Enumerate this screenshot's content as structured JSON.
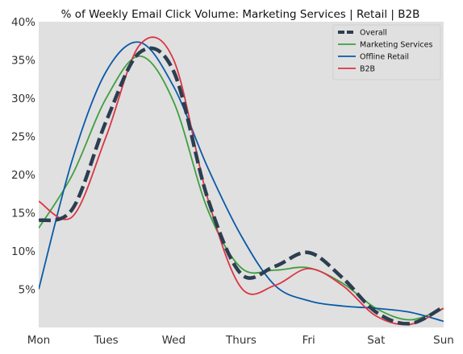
{
  "chart_data": {
    "type": "line",
    "title": "% of Weekly Email Click Volume: Marketing Services | Retail | B2B",
    "xlabel": "",
    "ylabel": "",
    "x_tick_labels": [
      "Mon",
      "Tues",
      "Wed",
      "Thurs",
      "Fri",
      "Sat",
      "Sun"
    ],
    "x": [
      0,
      0.5,
      1,
      1.5,
      2,
      2.5,
      3,
      3.5,
      4,
      4.5,
      5,
      5.5,
      6
    ],
    "y_tick_labels": [
      "5%",
      "10%",
      "15%",
      "20%",
      "25%",
      "30%",
      "35%",
      "40%"
    ],
    "ylim": [
      0,
      40
    ],
    "xlim": [
      0,
      6
    ],
    "grid": false,
    "legend_position": "top-right",
    "background_color": "#e0e0e0",
    "series": [
      {
        "name": "Overall",
        "color": "#2c3e50",
        "style": "dashed",
        "values": [
          14,
          15.5,
          27,
          36,
          33.5,
          17,
          7,
          8,
          9.8,
          6.5,
          2,
          0.5,
          2.7
        ]
      },
      {
        "name": "Marketing Services",
        "color": "#3f9f3f",
        "style": "solid",
        "values": [
          13,
          20,
          30,
          35.5,
          29.5,
          15.5,
          7.8,
          7.5,
          7.8,
          5.8,
          2.5,
          1,
          2.5
        ]
      },
      {
        "name": "Offline Retail",
        "color": "#0a5aa8",
        "style": "solid",
        "values": [
          5,
          22,
          33.5,
          37.3,
          31.5,
          21,
          12,
          5.5,
          3.5,
          2.8,
          2.5,
          2,
          0.8
        ]
      },
      {
        "name": "B2B",
        "color": "#dc3545",
        "style": "solid",
        "values": [
          16.5,
          14.5,
          25,
          37,
          35,
          17,
          5.2,
          5.5,
          7.7,
          5.5,
          1.5,
          0.4,
          2.5
        ]
      }
    ]
  }
}
